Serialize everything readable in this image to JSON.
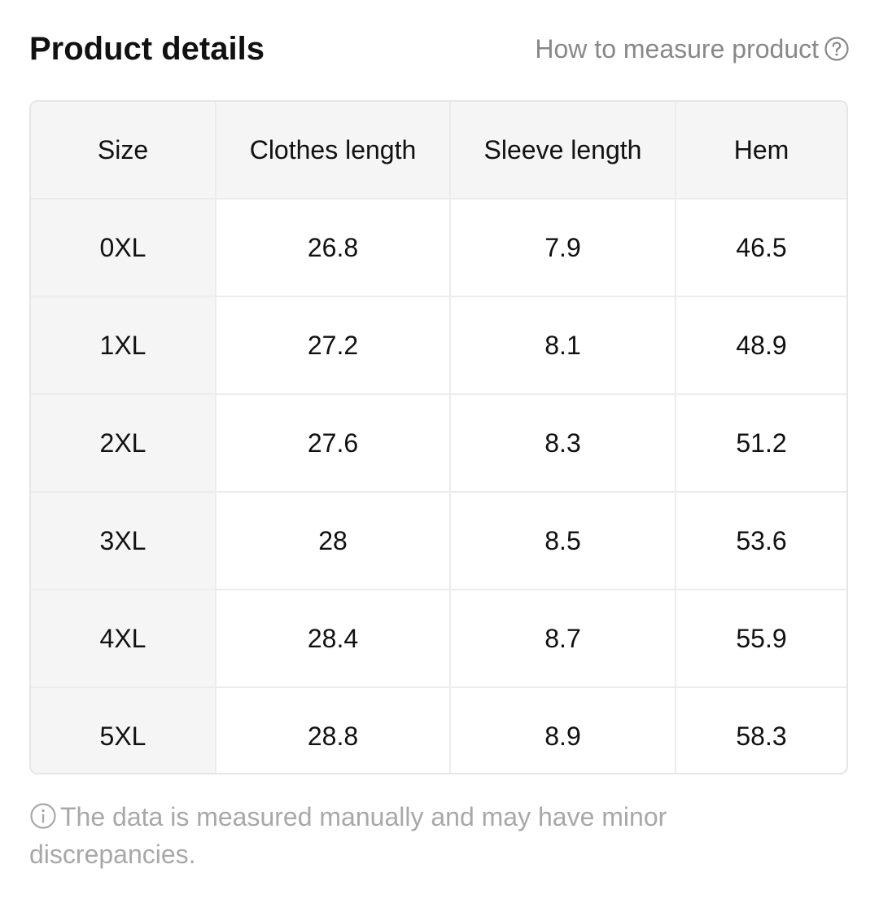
{
  "header": {
    "title": "Product details",
    "measure_link": "How to measure product",
    "measure_icon": "question-circle-icon"
  },
  "table": {
    "columns": [
      "Size",
      "Clothes length",
      "Sleeve length",
      "Hem"
    ],
    "rows": [
      [
        "0XL",
        "26.8",
        "7.9",
        "46.5"
      ],
      [
        "1XL",
        "27.2",
        "8.1",
        "48.9"
      ],
      [
        "2XL",
        "27.6",
        "8.3",
        "51.2"
      ],
      [
        "3XL",
        "28",
        "8.5",
        "53.6"
      ],
      [
        "4XL",
        "28.4",
        "8.7",
        "55.9"
      ],
      [
        "5XL",
        "28.8",
        "8.9",
        "58.3"
      ]
    ]
  },
  "footnote": {
    "icon": "info-circle-icon",
    "text": "The data is measured manually and may have minor discrepancies."
  },
  "colors": {
    "title": "#111111",
    "link": "#888888",
    "header_bg": "#f5f5f5",
    "border": "#ececec",
    "footnote": "#a8a8a8"
  }
}
